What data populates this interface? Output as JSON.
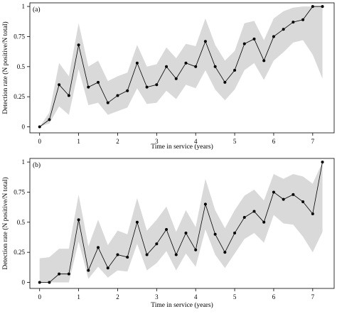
{
  "chart_data": [
    {
      "type": "line",
      "panel_label": "(a)",
      "xlabel": "Time in service (years)",
      "ylabel": "Detection rate (N positive/N total)",
      "xlim": [
        -0.25,
        7.55
      ],
      "ylim": [
        -0.05,
        1.03
      ],
      "xticks": [
        "0",
        "1",
        "2",
        "3",
        "4",
        "5",
        "6",
        "7"
      ],
      "yticks": [
        "0",
        "0.25",
        "0.5",
        "0.75",
        "1"
      ],
      "grid": false,
      "legend": "none",
      "series": [
        {
          "x": [
            0,
            0.25,
            0.5,
            0.75,
            1,
            1.25,
            1.5,
            1.75,
            2,
            2.25,
            2.5,
            2.75,
            3,
            3.25,
            3.5,
            3.75,
            4,
            4.25,
            4.5,
            4.75,
            5,
            5.25,
            5.5,
            5.75,
            6,
            6.25,
            6.5,
            6.75,
            7,
            7.25
          ],
          "y": [
            0,
            0.06,
            0.35,
            0.26,
            0.68,
            0.33,
            0.37,
            0.2,
            0.26,
            0.3,
            0.53,
            0.33,
            0.35,
            0.5,
            0.4,
            0.53,
            0.5,
            0.71,
            0.5,
            0.37,
            0.47,
            0.69,
            0.73,
            0.55,
            0.75,
            0.81,
            0.87,
            0.89,
            1.0,
            1.0
          ]
        }
      ],
      "band": {
        "x": [
          0,
          0.25,
          0.5,
          0.75,
          1,
          1.25,
          1.5,
          1.75,
          2,
          2.25,
          2.5,
          2.75,
          3,
          3.25,
          3.5,
          3.75,
          4,
          4.25,
          4.5,
          4.75,
          5,
          5.25,
          5.5,
          5.75,
          6,
          6.25,
          6.5,
          6.75,
          7,
          7.25
        ],
        "lower": [
          0,
          0.03,
          0.17,
          0.1,
          0.48,
          0.18,
          0.2,
          0.1,
          0.13,
          0.16,
          0.32,
          0.19,
          0.2,
          0.3,
          0.23,
          0.35,
          0.32,
          0.47,
          0.31,
          0.22,
          0.31,
          0.47,
          0.53,
          0.39,
          0.55,
          0.62,
          0.7,
          0.72,
          0.6,
          0.4
        ],
        "upper": [
          0,
          0.12,
          0.53,
          0.42,
          0.86,
          0.5,
          0.55,
          0.38,
          0.42,
          0.45,
          0.68,
          0.5,
          0.52,
          0.66,
          0.57,
          0.69,
          0.67,
          0.9,
          0.68,
          0.55,
          0.63,
          0.86,
          0.88,
          0.72,
          0.9,
          0.96,
          0.99,
          1.0,
          1.0,
          1.0
        ]
      }
    },
    {
      "type": "line",
      "panel_label": "(b)",
      "xlabel": "Time in service (years)",
      "ylabel": "Detection rate (N positive/N total)",
      "xlim": [
        -0.25,
        7.55
      ],
      "ylim": [
        -0.05,
        1.03
      ],
      "xticks": [
        "0",
        "1",
        "2",
        "3",
        "4",
        "5",
        "6",
        "7"
      ],
      "yticks": [
        "0",
        "0.25",
        "0.5",
        "0.75",
        "1"
      ],
      "grid": false,
      "legend": "none",
      "series": [
        {
          "x": [
            0,
            0.25,
            0.5,
            0.75,
            1,
            1.25,
            1.5,
            1.75,
            2,
            2.25,
            2.5,
            2.75,
            3,
            3.25,
            3.5,
            3.75,
            4,
            4.25,
            4.5,
            4.75,
            5,
            5.25,
            5.5,
            5.75,
            6,
            6.25,
            6.5,
            6.75,
            7,
            7.25
          ],
          "y": [
            0,
            0,
            0.07,
            0.07,
            0.52,
            0.1,
            0.29,
            0.12,
            0.23,
            0.21,
            0.5,
            0.23,
            0.32,
            0.44,
            0.23,
            0.41,
            0.27,
            0.65,
            0.4,
            0.25,
            0.41,
            0.54,
            0.59,
            0.5,
            0.75,
            0.69,
            0.73,
            0.67,
            0.57,
            1.0
          ]
        }
      ],
      "band": {
        "x": [
          0,
          0.25,
          0.5,
          0.75,
          1,
          1.25,
          1.5,
          1.75,
          2,
          2.25,
          2.5,
          2.75,
          3,
          3.25,
          3.5,
          3.75,
          4,
          4.25,
          4.5,
          4.75,
          5,
          5.25,
          5.5,
          5.75,
          6,
          6.25,
          6.5,
          6.75,
          7,
          7.25
        ],
        "lower": [
          0,
          0,
          0,
          0,
          0.34,
          0.03,
          0.13,
          0.04,
          0.1,
          0.09,
          0.32,
          0.1,
          0.16,
          0.26,
          0.1,
          0.24,
          0.13,
          0.44,
          0.23,
          0.12,
          0.24,
          0.36,
          0.41,
          0.33,
          0.56,
          0.49,
          0.48,
          0.38,
          0.25,
          0.42
        ],
        "upper": [
          0.2,
          0.21,
          0.28,
          0.28,
          0.73,
          0.3,
          0.52,
          0.31,
          0.43,
          0.4,
          0.7,
          0.43,
          0.52,
          0.63,
          0.42,
          0.6,
          0.46,
          0.86,
          0.6,
          0.45,
          0.6,
          0.72,
          0.77,
          0.68,
          0.9,
          0.86,
          0.9,
          0.88,
          0.82,
          1.0
        ]
      }
    }
  ]
}
